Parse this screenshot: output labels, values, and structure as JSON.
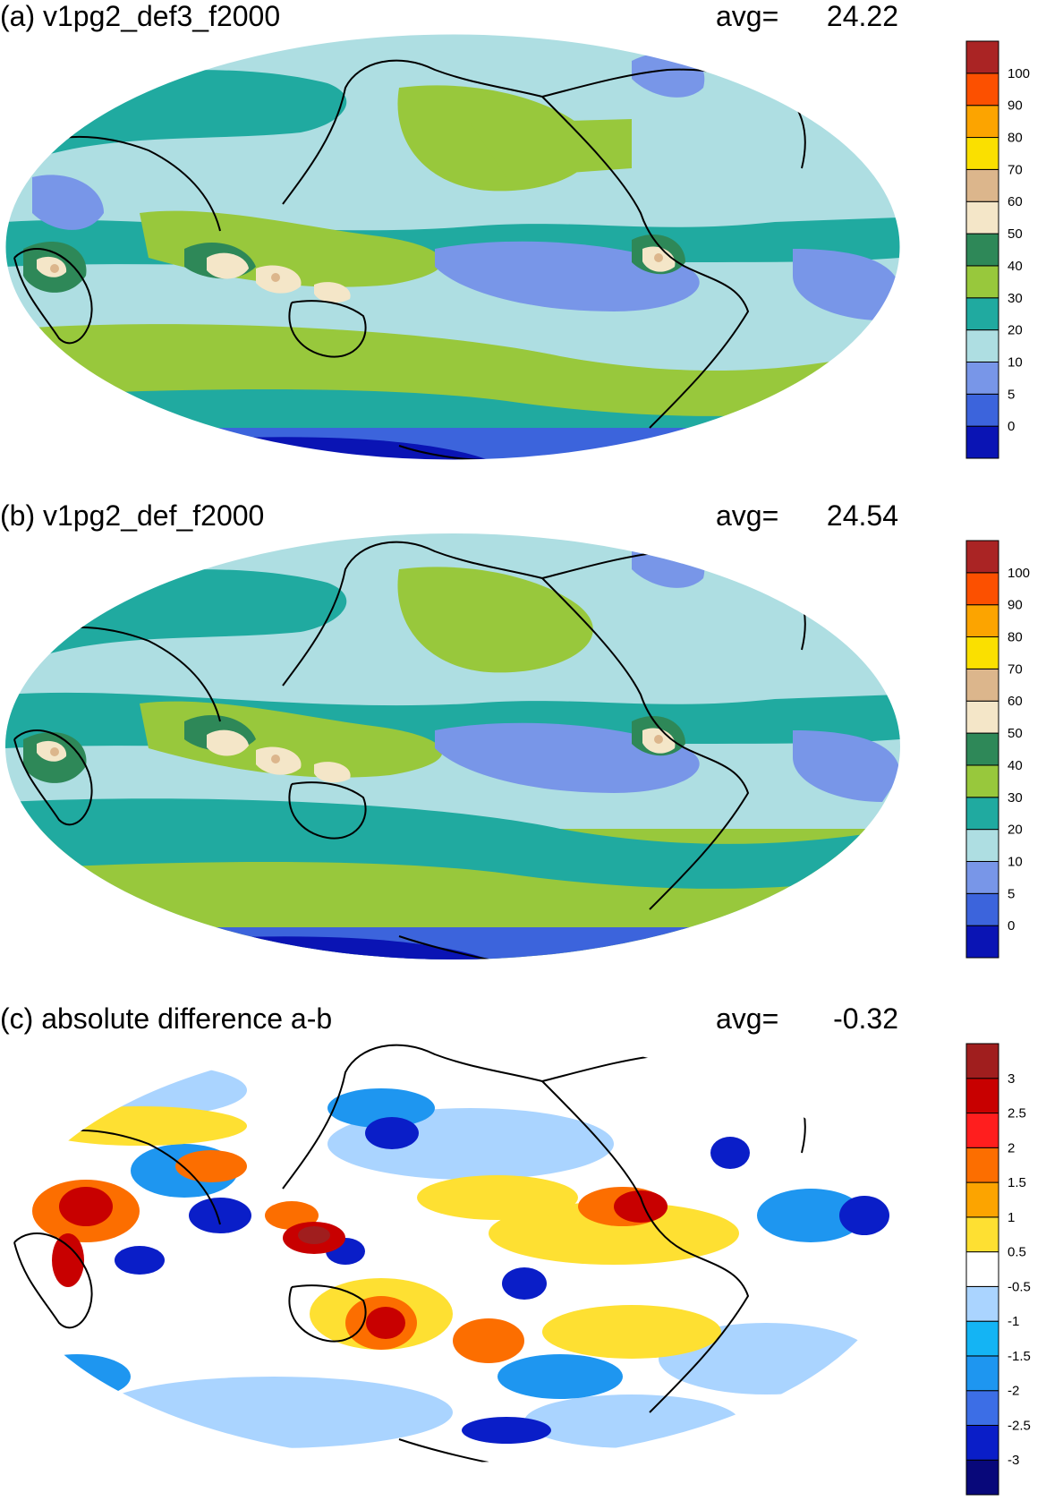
{
  "panels": [
    {
      "key": "a",
      "title": "(a) v1pg2_def3_f2000",
      "avg_label": "avg=",
      "avg_value": "24.22",
      "colorbar": {
        "colors": [
          "#0a14b4",
          "#3c64dc",
          "#7896e8",
          "#aedee2",
          "#20aaa0",
          "#98c83c",
          "#2e8858",
          "#f4e6c8",
          "#dcb68c",
          "#fae000",
          "#fca400",
          "#fc5000",
          "#aa2424"
        ],
        "labels": [
          "0",
          "5",
          "10",
          "20",
          "30",
          "40",
          "50",
          "60",
          "70",
          "80",
          "90",
          "100"
        ]
      }
    },
    {
      "key": "b",
      "title": "(b) v1pg2_def_f2000",
      "avg_label": "avg=",
      "avg_value": "24.54",
      "colorbar": {
        "colors": [
          "#0a14b4",
          "#3c64dc",
          "#7896e8",
          "#aedee2",
          "#20aaa0",
          "#98c83c",
          "#2e8858",
          "#f4e6c8",
          "#dcb68c",
          "#fae000",
          "#fca400",
          "#fc5000",
          "#aa2424"
        ],
        "labels": [
          "0",
          "5",
          "10",
          "20",
          "30",
          "40",
          "50",
          "60",
          "70",
          "80",
          "90",
          "100"
        ]
      }
    },
    {
      "key": "c",
      "title": "(c) absolute difference a-b",
      "avg_label": "avg=",
      "avg_value": "-0.32",
      "colorbar": {
        "colors": [
          "#08087a",
          "#0a1ec8",
          "#3c6ee6",
          "#1e96f0",
          "#14b4f4",
          "#aad4ff",
          "#ffffff",
          "#fee032",
          "#fca400",
          "#fc6e00",
          "#ff1e1e",
          "#c80000",
          "#a01e1e"
        ],
        "labels": [
          "-3",
          "-2.5",
          "-2",
          "-1.5",
          "-1",
          "-0.5",
          "0.5",
          "1",
          "1.5",
          "2",
          "2.5",
          "3"
        ]
      }
    }
  ]
}
